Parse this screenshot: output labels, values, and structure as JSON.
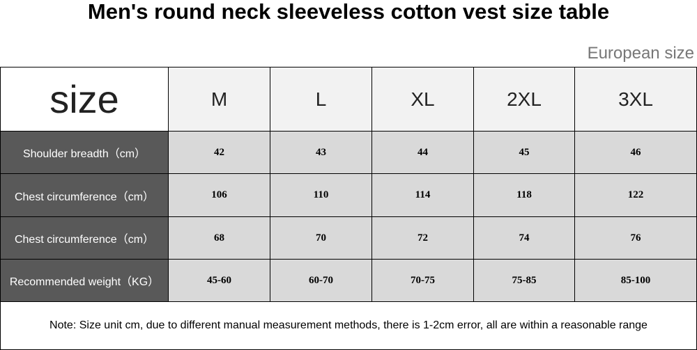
{
  "header": {
    "title": "Men's round neck sleeveless cotton vest size table",
    "subtitle": "European size"
  },
  "table": {
    "columns": [
      "size",
      "M",
      "L",
      "XL",
      "2XL",
      "3XL"
    ],
    "rows": [
      [
        "Shoulder breadth（cm）",
        42,
        43,
        44,
        45,
        46
      ],
      [
        "Chest circumference（cm）",
        106,
        110,
        114,
        118,
        122
      ],
      [
        "Chest circumference（cm）",
        68,
        70,
        72,
        74,
        76
      ],
      [
        "Recommended weight（KG）",
        "45-60",
        "60-70",
        "70-75",
        "75-85",
        "85-100"
      ]
    ]
  },
  "footer": {
    "note": "Note: Size unit cm, due to different manual measurement methods, there is 1-2cm error, all are within a reasonable range"
  }
}
